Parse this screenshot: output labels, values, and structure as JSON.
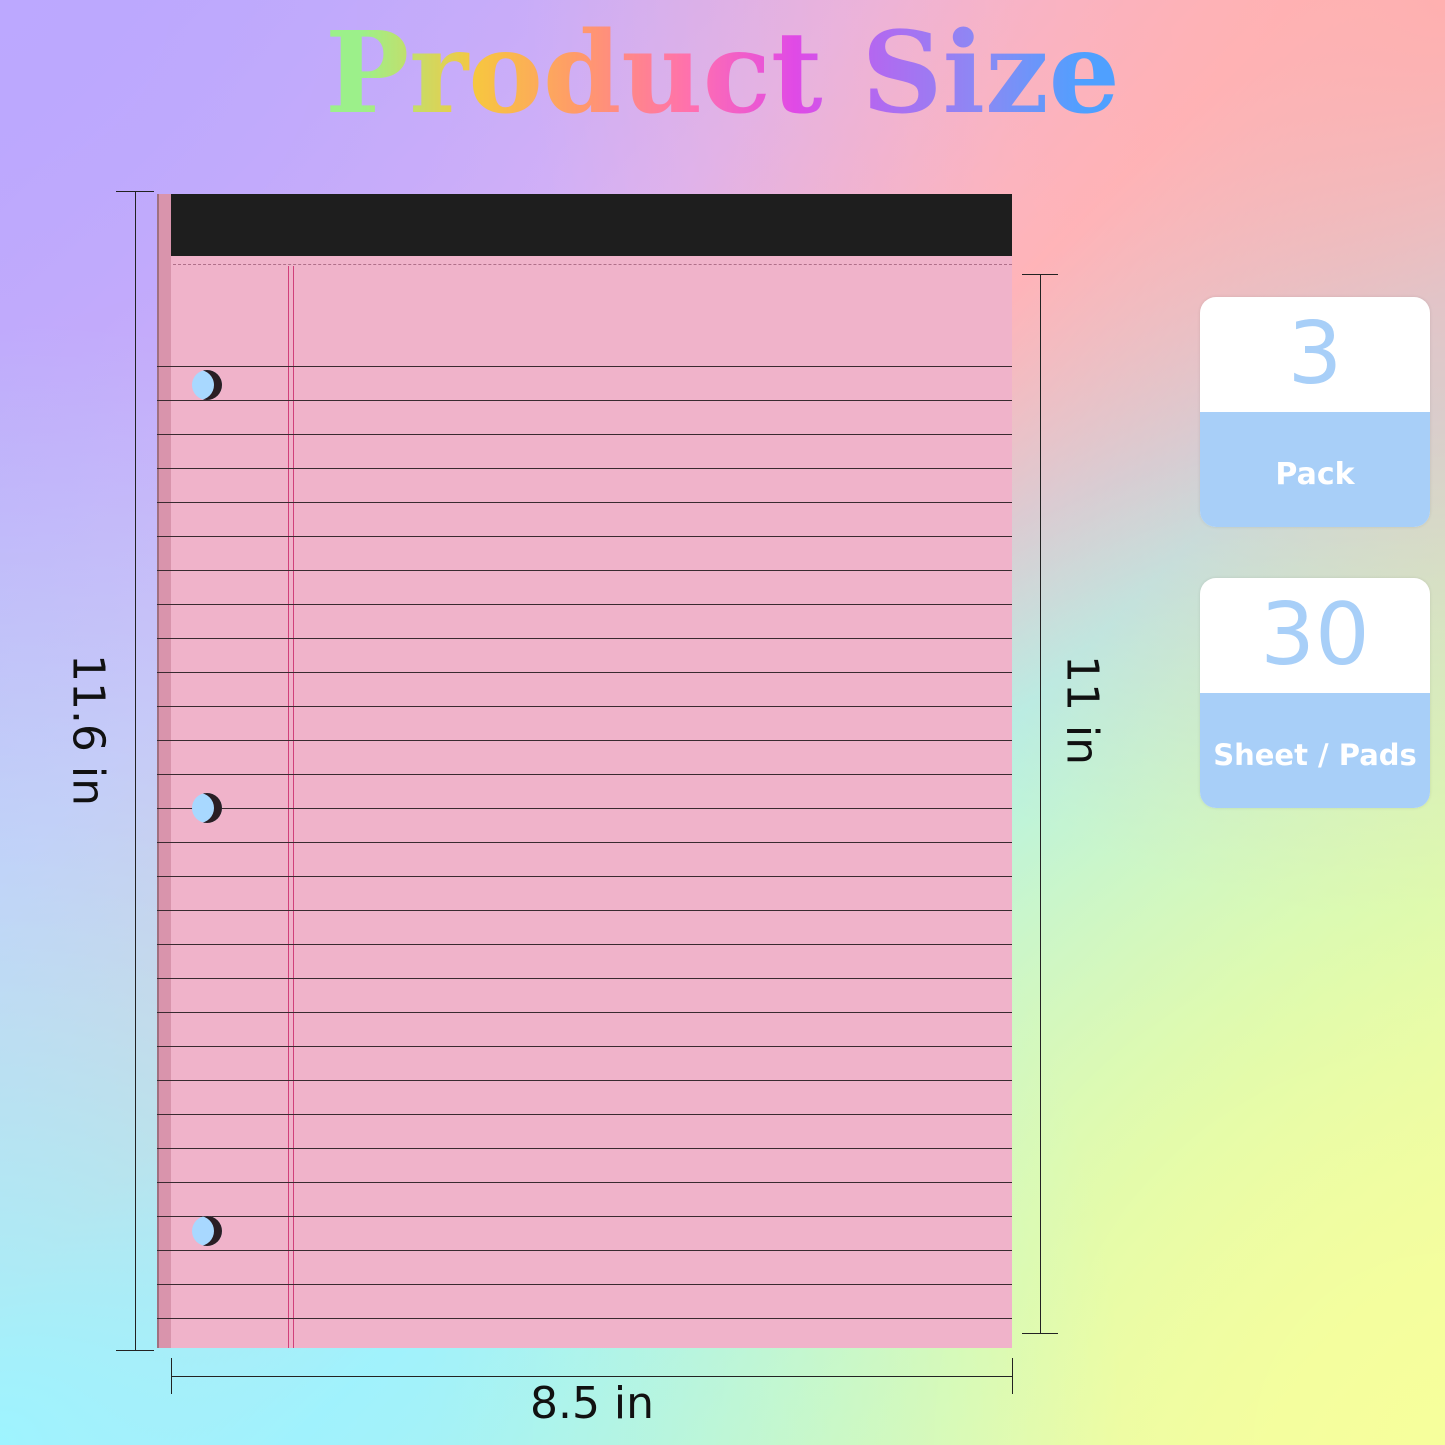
{
  "title": "Product Size",
  "dimensions": {
    "height_total": "11.6 in",
    "height_page": "11 in",
    "width": "8.5 in"
  },
  "cards": [
    {
      "value": "3",
      "label": "Pack"
    },
    {
      "value": "30",
      "label": "Sheet / Pads"
    }
  ],
  "colors": {
    "paper": "#f0b3ca",
    "band": "#1e1e1e",
    "card_accent": "#a8cff8"
  }
}
